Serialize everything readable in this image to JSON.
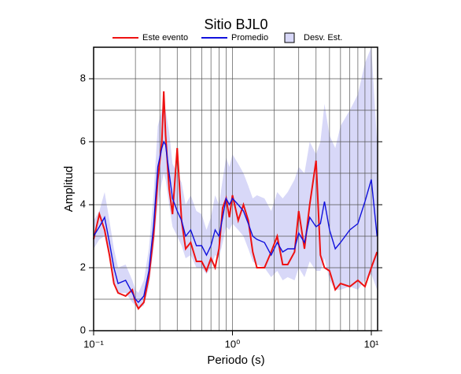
{
  "chart_data": {
    "type": "line",
    "title": "Sitio BJL0",
    "x_label": "Periodo (s)",
    "y_label": "Amplitud",
    "xlog": true,
    "xlim": [
      0.1,
      11.1
    ],
    "ylim": [
      0,
      9
    ],
    "xticks": [
      {
        "value": 0.1,
        "label": "10⁻¹"
      },
      {
        "value": 1,
        "label": "10⁰"
      },
      {
        "value": 10,
        "label": "10¹"
      }
    ],
    "yticks": [
      0,
      2,
      4,
      6,
      8
    ],
    "grid": true,
    "ygrid_step": 1,
    "log_minor_grid": true,
    "x": [
      0.1,
      0.11,
      0.12,
      0.13,
      0.14,
      0.15,
      0.17,
      0.19,
      0.2,
      0.21,
      0.23,
      0.25,
      0.27,
      0.29,
      0.31,
      0.32,
      0.33,
      0.35,
      0.37,
      0.4,
      0.43,
      0.46,
      0.5,
      0.55,
      0.6,
      0.65,
      0.7,
      0.75,
      0.8,
      0.85,
      0.9,
      0.95,
      1.0,
      1.1,
      1.2,
      1.3,
      1.4,
      1.5,
      1.7,
      1.9,
      2.1,
      2.3,
      2.5,
      2.8,
      3.0,
      3.3,
      3.6,
      4.0,
      4.3,
      4.6,
      5.0,
      5.5,
      6,
      7,
      8,
      9,
      10,
      11
    ],
    "band": {
      "name": "Desv. Est.",
      "color": "#d8d8f8",
      "lower": [
        2.6,
        2.9,
        3.0,
        2.3,
        1.6,
        1.2,
        1.2,
        0.9,
        0.8,
        0.7,
        0.8,
        1.4,
        2.6,
        4.0,
        4.7,
        5.0,
        4.8,
        4.0,
        3.3,
        3.0,
        2.7,
        2.3,
        2.4,
        2.0,
        2.0,
        1.8,
        2.0,
        2.4,
        2.3,
        2.8,
        3.3,
        3.2,
        3.4,
        3.2,
        3.0,
        2.6,
        2.2,
        2.1,
        2.0,
        1.7,
        1.9,
        1.6,
        1.7,
        1.6,
        2.0,
        1.7,
        2.2,
        1.9,
        1.9,
        2.3,
        1.6,
        1.3,
        1.3,
        1.4,
        1.3,
        1.6,
        1.8,
        1.3
      ],
      "upper": [
        3.5,
        3.8,
        4.4,
        3.5,
        2.6,
        2.0,
        2.1,
        1.6,
        1.3,
        1.2,
        1.6,
        2.6,
        4.3,
        6.5,
        7.0,
        7.2,
        7.0,
        6.3,
        5.3,
        5.0,
        4.7,
        4.0,
        4.3,
        3.8,
        3.7,
        3.2,
        3.6,
        4.3,
        4.0,
        4.8,
        5.5,
        5.2,
        5.6,
        5.3,
        5.0,
        4.6,
        4.2,
        4.3,
        4.2,
        3.8,
        4.4,
        4.2,
        4.4,
        4.8,
        5.2,
        5.0,
        6.0,
        5.6,
        6.0,
        7.2,
        6.2,
        5.8,
        6.5,
        7.0,
        7.5,
        8.5,
        9.0,
        6.0
      ]
    },
    "series": [
      {
        "name": "Este evento",
        "color": "#ee1111",
        "values": [
          2.9,
          3.7,
          3.2,
          2.4,
          1.5,
          1.2,
          1.1,
          1.3,
          0.9,
          0.7,
          0.9,
          1.7,
          3.0,
          4.8,
          6.0,
          7.6,
          6.2,
          4.5,
          3.7,
          5.8,
          3.5,
          2.6,
          2.8,
          2.2,
          2.2,
          1.9,
          2.3,
          2.0,
          2.6,
          3.9,
          4.2,
          3.6,
          4.3,
          3.5,
          4.0,
          3.5,
          2.5,
          2.0,
          2.0,
          2.5,
          3.0,
          2.1,
          2.1,
          2.5,
          3.8,
          2.6,
          4.0,
          5.4,
          2.4,
          2.0,
          1.9,
          1.3,
          1.5,
          1.4,
          1.6,
          1.4,
          2.0,
          2.5
        ]
      },
      {
        "name": "Promedio",
        "color": "#1111dd",
        "values": [
          3.0,
          3.3,
          3.6,
          2.8,
          2.0,
          1.5,
          1.6,
          1.2,
          1.0,
          0.9,
          1.1,
          1.9,
          3.3,
          5.2,
          5.8,
          6.0,
          5.9,
          5.0,
          4.2,
          3.8,
          3.5,
          3.0,
          3.2,
          2.7,
          2.7,
          2.4,
          2.7,
          3.2,
          3.0,
          3.6,
          4.2,
          4.0,
          4.2,
          4.0,
          3.8,
          3.4,
          3.0,
          2.9,
          2.8,
          2.4,
          2.8,
          2.5,
          2.6,
          2.6,
          3.1,
          2.8,
          3.6,
          3.3,
          3.4,
          4.1,
          3.2,
          2.6,
          2.8,
          3.2,
          3.4,
          4.1,
          4.8,
          3.0
        ]
      }
    ]
  }
}
